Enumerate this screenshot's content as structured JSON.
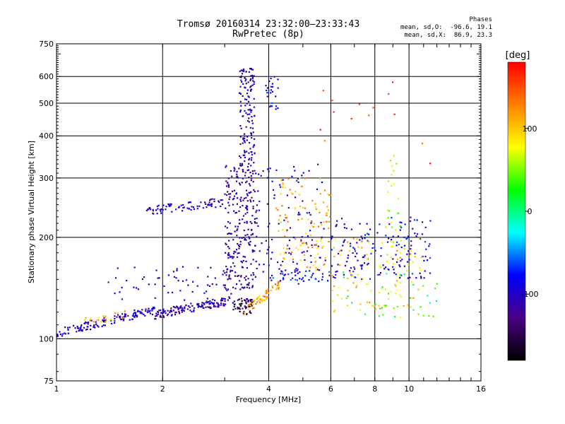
{
  "title": "Tromsø 20160314 23:32:00–23:33:43",
  "subtitle": "RwPretec (8p)",
  "phase_info": {
    "heading": "Phases",
    "line_o": "mean, sd,O:  -96.6, 19.1",
    "line_x": "mean, sd,X:  86.9, 23.3"
  },
  "chart_data": {
    "type": "scatter",
    "xlabel": "Frequency [MHz]",
    "ylabel": "Stationary phase Virtual Height [km]",
    "xscale": "log",
    "yscale": "log",
    "xlim": [
      1,
      16
    ],
    "ylim": [
      75,
      750
    ],
    "x_ticks": [
      1,
      2,
      4,
      6,
      8,
      10,
      16
    ],
    "y_ticks": [
      75,
      100,
      200,
      300,
      400,
      500,
      600,
      750
    ],
    "grid": true,
    "colorbar": {
      "label": "[deg]",
      "range": [
        -180,
        180
      ],
      "ticks": [
        -100,
        0,
        100
      ],
      "colors": [
        "#000000",
        "#4b0082",
        "#0000ff",
        "#00ffff",
        "#00ff00",
        "#ffff00",
        "#ff8000",
        "#ff0000"
      ]
    },
    "clusters": [
      {
        "x": [
          1.0,
          1.9
        ],
        "y": [
          104,
          122
        ],
        "phase": -100,
        "n": 140,
        "trend": true
      },
      {
        "x": [
          1.2,
          1.6
        ],
        "y": [
          112,
          118
        ],
        "phase": 110,
        "n": 20,
        "trend": true
      },
      {
        "x": [
          1.9,
          3.1
        ],
        "y": [
          118,
          130
        ],
        "phase": -110,
        "n": 140,
        "trend": true
      },
      {
        "x": [
          1.4,
          3.2
        ],
        "y": [
          130,
          165
        ],
        "phase": -100,
        "n": 60,
        "trend": false
      },
      {
        "x": [
          1.8,
          3.0
        ],
        "y": [
          240,
          255
        ],
        "phase": -100,
        "n": 80,
        "trend": true
      },
      {
        "x": [
          3.0,
          3.7
        ],
        "y": [
          140,
          330
        ],
        "phase": -110,
        "n": 260,
        "trend": false
      },
      {
        "x": [
          3.3,
          3.65
        ],
        "y": [
          330,
          640
        ],
        "phase": -110,
        "n": 140,
        "trend": false
      },
      {
        "x": [
          3.15,
          3.6
        ],
        "y": [
          118,
          132
        ],
        "phase": -150,
        "n": 50,
        "trend": false
      },
      {
        "x": [
          3.4,
          4.3
        ],
        "y": [
          120,
          145
        ],
        "phase": 120,
        "n": 60,
        "trend": true
      },
      {
        "x": [
          3.9,
          4.3
        ],
        "y": [
          480,
          600
        ],
        "phase": -90,
        "n": 25,
        "trend": false
      },
      {
        "x": [
          3.7,
          5.8
        ],
        "y": [
          145,
          330
        ],
        "phase": -100,
        "n": 110,
        "trend": false
      },
      {
        "x": [
          4.2,
          6.0
        ],
        "y": [
          160,
          300
        ],
        "phase": 110,
        "n": 110,
        "trend": false
      },
      {
        "x": [
          4.0,
          6.0
        ],
        "y": [
          148,
          160
        ],
        "phase": -80,
        "n": 40,
        "trend": false
      },
      {
        "x": [
          6.0,
          11.5
        ],
        "y": [
          150,
          230
        ],
        "phase": -90,
        "n": 170,
        "trend": false
      },
      {
        "x": [
          6.0,
          11.0
        ],
        "y": [
          120,
          200
        ],
        "phase": 100,
        "n": 90,
        "trend": false
      },
      {
        "x": [
          8.5,
          9.5
        ],
        "y": [
          115,
          380
        ],
        "phase": 60,
        "n": 40,
        "trend": false
      },
      {
        "x": [
          6.5,
          12.5
        ],
        "y": [
          115,
          160
        ],
        "phase": 20,
        "n": 30,
        "trend": false
      },
      {
        "x": [
          5.5,
          11.5
        ],
        "y": [
          300,
          620
        ],
        "phase": 150,
        "n": 14,
        "trend": false
      }
    ]
  }
}
